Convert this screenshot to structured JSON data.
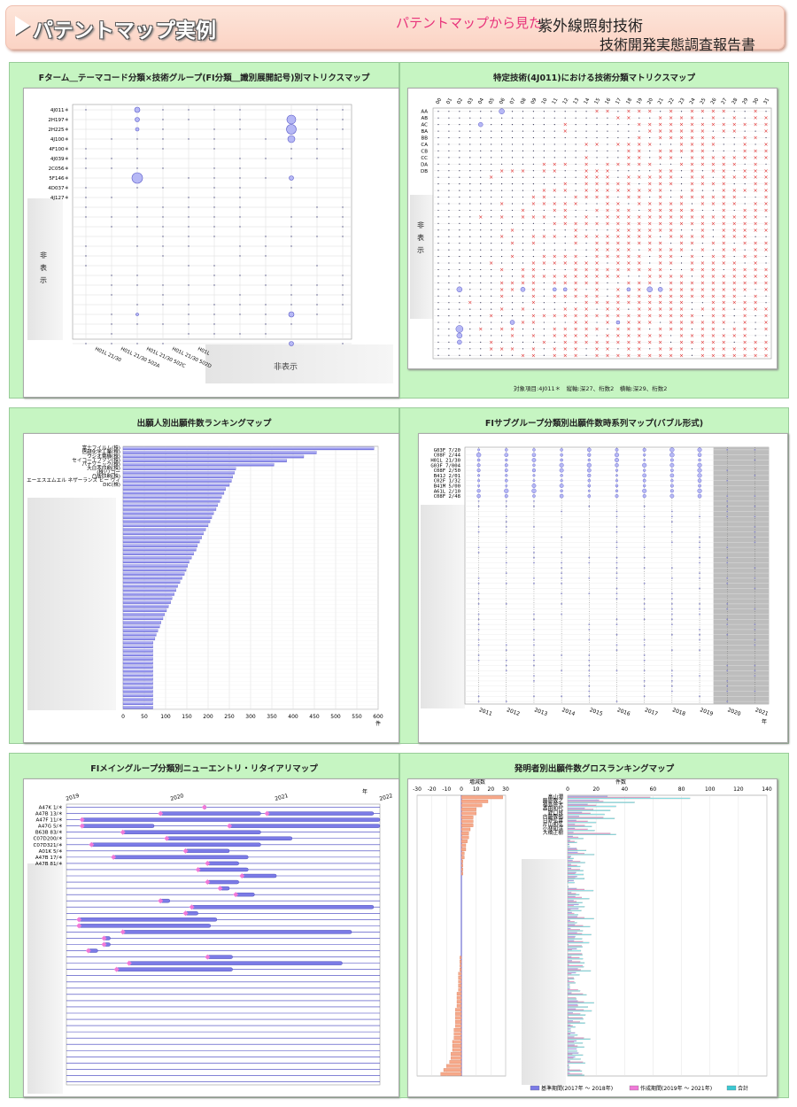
{
  "header": {
    "title": "パテントマップ実例",
    "subtitle": "パテントマップから見た",
    "right1": "紫外線照射技術",
    "right2": "技術開発実態調査報告書"
  },
  "hidden_label": "非表示",
  "hidden_v": [
    "非",
    "表",
    "示"
  ],
  "panels": {
    "p1": {
      "title": "Fターム＿テーマコード分類×技術グループ(FI分類＿識別展開記号)別マトリクスマップ",
      "rows": [
        "4J011＊",
        "2H197＊",
        "2H225＊",
        "4J100＊",
        "4F100＊",
        "4J039＊",
        "2C056＊",
        "5F146＊",
        "4D037＊",
        "4J127＊"
      ],
      "cols": [
        "H01L 21/30",
        "H01L 21/30 502A",
        "H01L 21/30 502C",
        "H01L 21/30 502D",
        "H01L"
      ],
      "hidden": "非表示"
    },
    "p2": {
      "title": "特定技術(4J011)における技術分類マトリクスマップ",
      "rows": [
        "AA",
        "AB",
        "AC",
        "BA",
        "BB",
        "CA",
        "CB",
        "CC",
        "DA",
        "DB"
      ],
      "cols": [
        "00",
        "01",
        "02",
        "03",
        "04",
        "05",
        "06",
        "07",
        "08",
        "09",
        "10",
        "11",
        "12",
        "13",
        "14",
        "15",
        "16",
        "17",
        "18",
        "19",
        "20",
        "21",
        "22",
        "23",
        "24",
        "25",
        "26",
        "27",
        "28",
        "29",
        "30",
        "31"
      ],
      "footer": "対象項目:4J011＊　縦軸:深27、桁数2　横軸:深29、桁数2"
    },
    "p3": {
      "title": "出願人別出願件数ランキングマップ",
      "names": [
        "富士フイルム(株)",
        "信越化学工業(株)",
        "ウシオ電機(株)",
        "セイコーエプソン(株)",
        "パナソニック(株)",
        "大日本印刷(株)",
        "(株)リコー",
        "凸版印刷(株)",
        "エーエスエムエル ネザーランズ ビー ヴィ",
        "DIC(株)"
      ],
      "axis": [
        "0",
        "50",
        "100",
        "150",
        "200",
        "250",
        "300",
        "350",
        "400",
        "450",
        "500",
        "550",
        "600"
      ],
      "unit": "件"
    },
    "p4": {
      "title": "FIサブグループ分類別出願件数時系列マップ(バブル形式)",
      "rows": [
        "G03F 7/20",
        "C08F 2/44",
        "H01L 21/30",
        "G03F 7/004",
        "C08F 2/50",
        "B41J 2/01",
        "C02F 1/32",
        "B41M 5/00",
        "A61L 2/10",
        "C08F 2/48"
      ],
      "years": [
        "2011",
        "2012",
        "2013",
        "2014",
        "2015",
        "2016",
        "2017",
        "2018",
        "2019",
        "2020",
        "2021"
      ],
      "unit": "年"
    },
    "p5": {
      "title": "FIメイングループ分類別ニューエントリ・リタイアリマップ",
      "rows": [
        "A47K 1/＊",
        "A47B 13/＊",
        "A47F 11/＊",
        "A47G 5/＊",
        "B63B 83/＊",
        "C07D200/＊",
        "C07D321/＊",
        "A01K 5/＊",
        "A47B 17/＊",
        "A47B 81/＊"
      ],
      "years": [
        "2019",
        "2020",
        "2021",
        "2022"
      ],
      "unit": "年"
    },
    "p6": {
      "title": "発明者別出願件数グロスランキングマップ",
      "names": [
        "畠山潤",
        "藤原敬之",
        "福島将大",
        "森田和代",
        "野口良",
        "内藤敬祐",
        "日野弘喜",
        "片山和弘",
        "小林知洋",
        "大橋正樹"
      ],
      "left_axis": [
        "-30",
        "-20",
        "-10",
        "0",
        "10",
        "20",
        "30"
      ],
      "left_label": "増減数",
      "right_axis": [
        "0",
        "20",
        "40",
        "60",
        "80",
        "100",
        "120",
        "140"
      ],
      "right_label": "件数",
      "legend": [
        "基準期間(2017年 ～ 2018年)",
        "作成期間(2019年 ～ 2021年)",
        "合計"
      ]
    }
  },
  "chart_data": [
    {
      "type": "bar",
      "title": "出願人別出願件数ランキングマップ",
      "categories": [
        "富士フイルム(株)",
        "信越化学工業(株)",
        "ウシオ電機(株)",
        "セイコーエプソン(株)",
        "パナソニック(株)",
        "大日本印刷(株)",
        "(株)リコー",
        "凸版印刷(株)",
        "エーエスエムエル ネザーランズ ビー ヴィ",
        "DIC(株)"
      ],
      "values": [
        590,
        455,
        425,
        385,
        355,
        265,
        262,
        258,
        255,
        250
      ],
      "xlim": [
        0,
        600
      ],
      "orientation": "horizontal"
    },
    {
      "type": "bar",
      "title": "発明者別出願件数グロスランキングマップ",
      "categories": [
        "畠山潤",
        "藤原敬之",
        "福島将大",
        "森田和代",
        "野口良",
        "内藤敬祐",
        "日野弘喜",
        "片山和弘",
        "小林知洋",
        "大橋正樹"
      ],
      "series": [
        {
          "name": "基準期間(2017年 ～ 2018年)",
          "values": [
            28,
            22,
            14,
            12,
            10,
            8,
            6,
            5,
            5,
            4
          ]
        },
        {
          "name": "作成期間(2019年 ～ 2021年)",
          "values": [
            58,
            25,
            20,
            18,
            16,
            25,
            14,
            12,
            14,
            30
          ]
        },
        {
          "name": "合計",
          "values": [
            86,
            47,
            34,
            30,
            26,
            33,
            20,
            17,
            19,
            34
          ]
        }
      ],
      "xlim": [
        0,
        140
      ]
    }
  ]
}
